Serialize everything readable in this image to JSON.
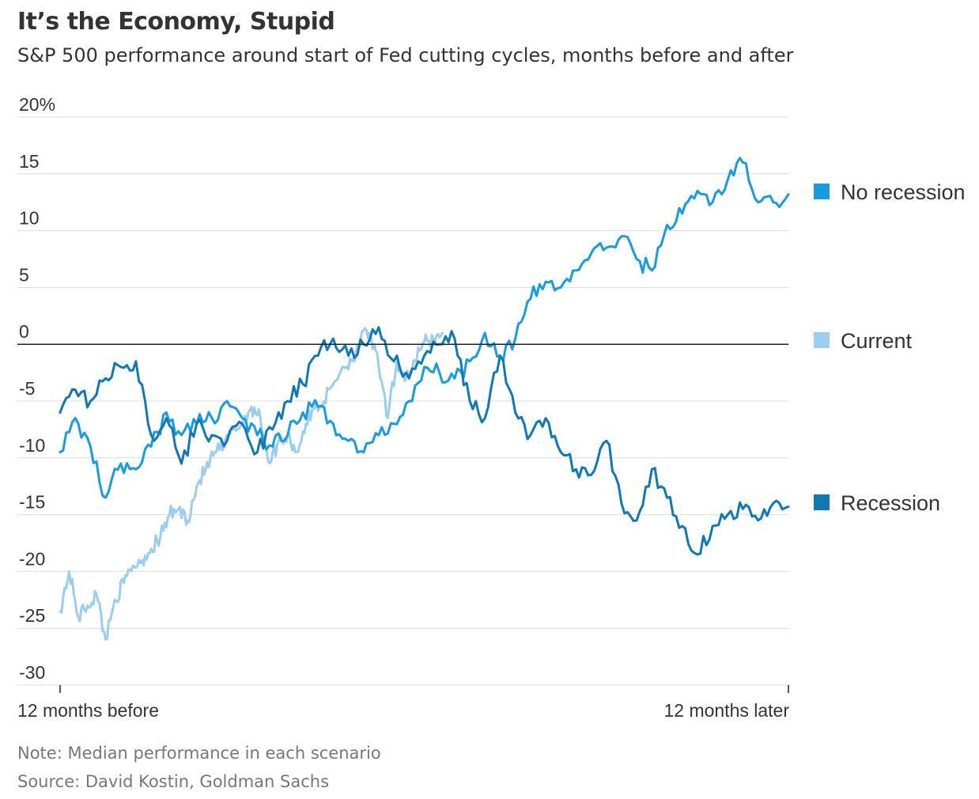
{
  "header": {
    "title": "It’s the Economy, Stupid",
    "subtitle": "S&P 500 performance around start of Fed cutting cycles, months before and after"
  },
  "footer": {
    "note": "Note: Median performance in each scenario",
    "source": "Source: David Kostin, Goldman Sachs"
  },
  "chart_data": {
    "type": "line",
    "title": "It’s the Economy, Stupid",
    "subtitle": "S&P 500 performance around start of Fed cutting cycles, months before and after",
    "xlabel": "",
    "ylabel": "",
    "ylim": [
      -30,
      20
    ],
    "yticks": [
      20,
      15,
      10,
      5,
      0,
      -5,
      -10,
      -15,
      -20,
      -25,
      -30
    ],
    "ytick_labels": [
      "20%",
      "15",
      "10",
      "5",
      "0",
      "-5",
      "-10",
      "-15",
      "-20",
      "-25",
      "-30"
    ],
    "xlim": [
      -12,
      12
    ],
    "xticks": [
      -12,
      12
    ],
    "xtick_labels": [
      "12 months before",
      "12 months later"
    ],
    "grid": true,
    "legend": "right, at line ends",
    "series": [
      {
        "name": "Current",
        "color": "#9ccdee",
        "x": [
          -12,
          -11.7,
          -11.4,
          -11.1,
          -10.8,
          -10.5,
          -10.2,
          -9.9,
          -9.6,
          -9.3,
          -9,
          -8.7,
          -8.4,
          -8.1,
          -7.8,
          -7.5,
          -7.2,
          -6.9,
          -6.6,
          -6.3,
          -6,
          -5.7,
          -5.4,
          -5.1,
          -4.8,
          -4.5,
          -4.2,
          -3.9,
          -3.6,
          -3.3,
          -3,
          -2.7,
          -2.4,
          -2.1,
          -1.8,
          -1.5,
          -1.2,
          -0.9,
          -0.6,
          -0.3,
          0,
          0.3,
          0.6
        ],
        "y": [
          -23.5,
          -20,
          -24,
          -23,
          -22,
          -26,
          -22.5,
          -21,
          -19.5,
          -19,
          -18,
          -17,
          -15,
          -14.5,
          -15.5,
          -12.5,
          -11,
          -9.5,
          -9,
          -7.5,
          -7,
          -5.5,
          -6.5,
          -10.5,
          -8.5,
          -8,
          -9.5,
          -7,
          -5.5,
          -5,
          -3.5,
          -2,
          -1.5,
          0.5,
          1,
          -2,
          -6.5,
          -1.5,
          -3,
          -1.5,
          0.2,
          0.5,
          1
        ]
      },
      {
        "name": "No recession",
        "color": "#199bde",
        "x": [
          -12,
          -11.5,
          -11,
          -10.5,
          -10,
          -9.5,
          -9,
          -8.5,
          -8,
          -7.5,
          -7,
          -6.5,
          -6,
          -5.5,
          -5,
          -4.5,
          -4,
          -3.5,
          -3,
          -2.5,
          -2,
          -1.5,
          -1,
          -0.5,
          0,
          0.5,
          1,
          1.5,
          2,
          2.5,
          3,
          3.5,
          4,
          4.5,
          5,
          5.5,
          6,
          6.5,
          7,
          7.5,
          8,
          8.5,
          9,
          9.5,
          10,
          10.5,
          11,
          11.5,
          12
        ],
        "y": [
          -9.5,
          -6.5,
          -9,
          -13.5,
          -10.5,
          -11,
          -9,
          -6,
          -8,
          -7,
          -6.5,
          -5,
          -6.5,
          -8,
          -9,
          -8,
          -6,
          -5.5,
          -7,
          -8.5,
          -9.5,
          -8,
          -7,
          -5,
          -2,
          -2.5,
          -3,
          -1.5,
          1,
          -1,
          0.5,
          4,
          5.5,
          5,
          6.5,
          8,
          8.5,
          9.5,
          7.5,
          6.5,
          10.5,
          11.5,
          13.5,
          12.5,
          14.5,
          16,
          12.5,
          12.5,
          13.2
        ]
      },
      {
        "name": "Recession",
        "color": "#1178b4",
        "x": [
          -12,
          -11.5,
          -11,
          -10.5,
          -10,
          -9.5,
          -9,
          -8.5,
          -8,
          -7.5,
          -7,
          -6.5,
          -6,
          -5.5,
          -5,
          -4.5,
          -4,
          -3.5,
          -3,
          -2.5,
          -2,
          -1.5,
          -1,
          -0.5,
          0,
          0.5,
          1,
          1.5,
          2,
          2.5,
          3,
          3.5,
          4,
          4.5,
          5,
          5.5,
          6,
          6.5,
          7,
          7.5,
          8,
          8.5,
          9,
          9.5,
          10,
          10.5,
          11,
          11.5,
          12
        ],
        "y": [
          -6,
          -4,
          -5,
          -3,
          -2,
          -1.5,
          -8,
          -6.5,
          -10.5,
          -7,
          -8,
          -8.5,
          -7,
          -9.5,
          -7.5,
          -5,
          -3.5,
          -1,
          0.5,
          -1,
          0,
          1.5,
          -1.5,
          -3,
          -1,
          0,
          0.5,
          -5,
          -6.5,
          -1,
          -6,
          -8,
          -6.5,
          -9.5,
          -11,
          -11.5,
          -8.5,
          -14,
          -15.5,
          -11,
          -13.5,
          -16,
          -18.5,
          -16,
          -15,
          -14.5,
          -15.5,
          -14,
          -14.3
        ]
      }
    ]
  }
}
